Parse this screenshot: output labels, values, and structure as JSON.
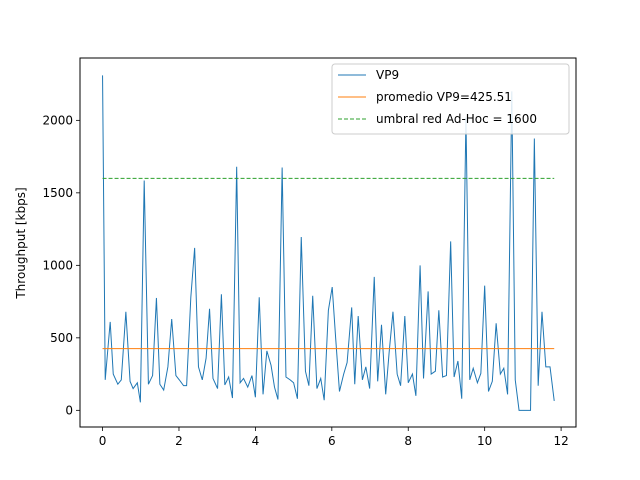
{
  "chart_data": {
    "type": "line",
    "xlabel": "",
    "ylabel": "Throughput [kbps]",
    "xlim": [
      -0.59,
      12.39
    ],
    "ylim": [
      -115,
      2430
    ],
    "xticks": [
      0,
      2,
      4,
      6,
      8,
      10,
      12
    ],
    "yticks": [
      0,
      500,
      1000,
      1500,
      2000
    ],
    "grid": false,
    "legend_position": "top-right",
    "colors": {
      "vp9": "#1f77b4",
      "mean": "#ff7f0e",
      "threshold": "#2ca02c"
    },
    "series": [
      {
        "name": "VP9",
        "style": "solid",
        "x": [
          0.0,
          0.07,
          0.2,
          0.28,
          0.4,
          0.49,
          0.61,
          0.72,
          0.8,
          0.91,
          0.99,
          1.09,
          1.2,
          1.31,
          1.41,
          1.5,
          1.6,
          1.71,
          1.81,
          1.92,
          2.01,
          2.12,
          2.2,
          2.31,
          2.41,
          2.51,
          2.61,
          2.71,
          2.8,
          2.89,
          3.01,
          3.11,
          3.2,
          3.3,
          3.4,
          3.51,
          3.6,
          3.69,
          3.8,
          3.91,
          4.0,
          4.1,
          4.2,
          4.3,
          4.41,
          4.5,
          4.59,
          4.7,
          4.8,
          4.91,
          5.0,
          5.1,
          5.2,
          5.31,
          5.4,
          5.5,
          5.61,
          5.71,
          5.8,
          5.91,
          6.01,
          6.1,
          6.2,
          6.31,
          6.4,
          6.52,
          6.6,
          6.69,
          6.8,
          6.89,
          6.99,
          7.11,
          7.2,
          7.3,
          7.41,
          7.5,
          7.6,
          7.71,
          7.8,
          7.91,
          8.0,
          8.11,
          8.2,
          8.31,
          8.4,
          8.52,
          8.6,
          8.71,
          8.8,
          8.9,
          9.0,
          9.11,
          9.2,
          9.3,
          9.4,
          9.51,
          9.61,
          9.7,
          9.81,
          9.9,
          10.0,
          10.1,
          10.2,
          10.3,
          10.41,
          10.5,
          10.6,
          10.71,
          10.8,
          10.9,
          11.01,
          11.11,
          11.2,
          11.3,
          11.4,
          11.5,
          11.6,
          11.71,
          11.82
        ],
        "y": [
          2310,
          210,
          610,
          250,
          180,
          210,
          680,
          200,
          150,
          190,
          55,
          1585,
          180,
          240,
          775,
          180,
          140,
          300,
          630,
          240,
          210,
          170,
          170,
          780,
          1120,
          300,
          210,
          360,
          700,
          220,
          150,
          800,
          175,
          230,
          85,
          1680,
          190,
          220,
          160,
          240,
          90,
          780,
          110,
          410,
          310,
          160,
          75,
          1675,
          230,
          210,
          190,
          80,
          1195,
          270,
          170,
          790,
          150,
          220,
          70,
          690,
          850,
          500,
          130,
          250,
          330,
          710,
          180,
          650,
          210,
          300,
          150,
          920,
          200,
          590,
          110,
          400,
          680,
          250,
          170,
          650,
          190,
          250,
          100,
          1000,
          220,
          820,
          250,
          270,
          690,
          230,
          240,
          1165,
          230,
          340,
          80,
          2020,
          210,
          290,
          190,
          255,
          860,
          130,
          200,
          600,
          250,
          290,
          110,
          2200,
          210,
          0,
          0,
          0,
          0,
          1875,
          170,
          680,
          300,
          300,
          65
        ]
      },
      {
        "name": "promedio VP9=425.51",
        "style": "solid",
        "x": [
          0,
          11.82
        ],
        "y": [
          425.51,
          425.51
        ]
      },
      {
        "name": "umbral red Ad-Hoc = 1600",
        "style": "dashed",
        "x": [
          0,
          11.82
        ],
        "y": [
          1600,
          1600
        ]
      }
    ]
  }
}
